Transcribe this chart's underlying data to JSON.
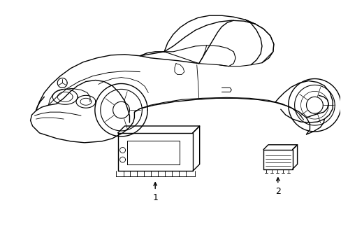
{
  "bg_color": "#ffffff",
  "line_color": "#000000",
  "lw": 1.0,
  "fig_width": 4.89,
  "fig_height": 3.6,
  "dpi": 100,
  "label1": "1",
  "label2": "2"
}
